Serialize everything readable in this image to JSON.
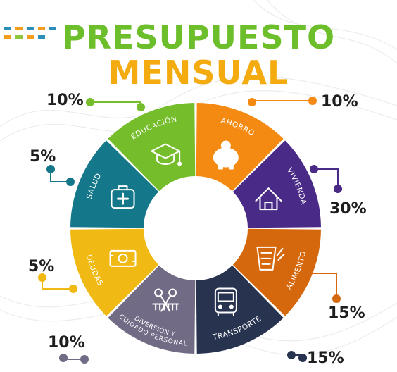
{
  "title": {
    "line1": "PRESUPUESTO",
    "line2": "MENSUAL"
  },
  "colors": {
    "title_green": "#6cbf2a",
    "title_orange": "#f4ab10",
    "dash_blue": "#2b8fb8",
    "dash_orange": "#f39c1e",
    "dash_green": "#8cc63f"
  },
  "chart_data": {
    "type": "pie",
    "style": "donut",
    "categories": [
      "AHORRO",
      "VIVIENDA",
      "ALIMENTO",
      "TRANSPORTE",
      "DIVERSIÓN Y CUIDADO PERSONAL",
      "DEUDAS",
      "SALUD",
      "EDUCACIÓN"
    ],
    "values": [
      10,
      30,
      15,
      15,
      10,
      5,
      5,
      10
    ],
    "value_labels": [
      "10%",
      "30%",
      "15%",
      "15%",
      "10%",
      "5%",
      "5%",
      "10%"
    ],
    "colors": [
      "#f48a12",
      "#4a2a87",
      "#d5680d",
      "#27334f",
      "#726b86",
      "#f0b914",
      "#15788a",
      "#76bd2c"
    ],
    "icons": [
      "piggy-bank-icon",
      "house-icon",
      "groceries-icon",
      "bus-icon",
      "scissors-comb-icon",
      "money-bill-icon",
      "first-aid-kit-icon",
      "graduation-cap-icon"
    ]
  }
}
